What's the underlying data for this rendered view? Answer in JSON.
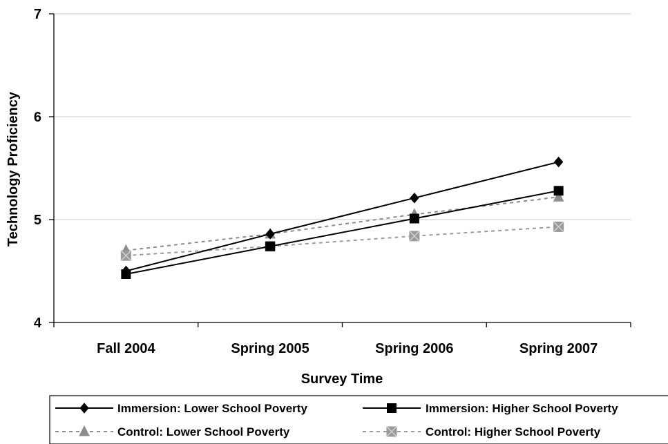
{
  "chart_data": {
    "type": "line",
    "title": "",
    "xlabel": "Survey Time",
    "ylabel": "Technology Proficiency",
    "ylim": [
      4,
      7
    ],
    "yticks": [
      "4",
      "5",
      "6",
      "7"
    ],
    "grid": true,
    "legend_position": "bottom",
    "categories": [
      "Fall 2004",
      "Spring 2005",
      "Spring 2006",
      "Spring 2007"
    ],
    "series": [
      {
        "name": "Immersion: Lower School Poverty",
        "values": [
          4.5,
          4.86,
          5.21,
          5.56
        ],
        "color": "#000000",
        "marker": "diamond",
        "dashed": false
      },
      {
        "name": "Immersion: Higher School Poverty",
        "values": [
          4.47,
          4.74,
          5.01,
          5.28
        ],
        "color": "#000000",
        "marker": "square",
        "dashed": false
      },
      {
        "name": "Control: Lower School Poverty",
        "values": [
          4.7,
          4.86,
          5.05,
          5.22
        ],
        "color": "#8c8c8c",
        "marker": "triangle",
        "dashed": true
      },
      {
        "name": "Control: Higher School Poverty",
        "values": [
          4.65,
          4.74,
          4.84,
          4.93
        ],
        "color": "#9a9a9a",
        "marker": "x-square",
        "dashed": true
      }
    ]
  }
}
